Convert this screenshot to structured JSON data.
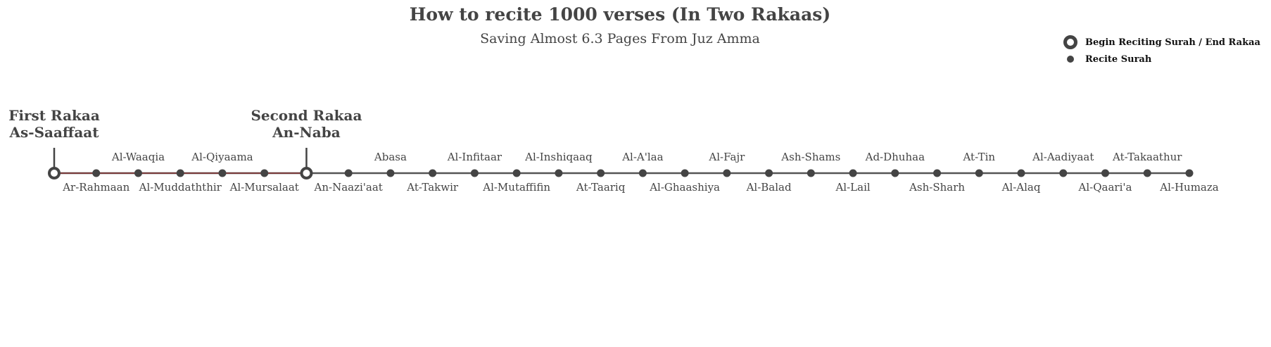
{
  "chart_data": {
    "type": "timeline",
    "title": "How to recite 1000 verses (In Two Rakaas)",
    "subtitle": "Saving Almost 6.3 Pages From Juz Amma",
    "colors": {
      "line": "#555555",
      "highlight": "#7a3b3b",
      "marker": "#444444",
      "text": "#444444"
    },
    "legend": {
      "placement": "top-right",
      "items": [
        {
          "marker": "ring",
          "label": "Begin Reciting Surah / End Rakaa"
        },
        {
          "marker": "dot",
          "label": "Recite Surah"
        }
      ]
    },
    "rakaas": [
      {
        "label": "First Rakaa",
        "surah": "As-Saaffaat",
        "index": 0
      },
      {
        "label": "Second Rakaa",
        "surah": "An-Naba",
        "index": 6
      }
    ],
    "highlight_range": [
      0,
      6
    ],
    "points": [
      {
        "name": "",
        "marker": "ring",
        "label_pos": "none"
      },
      {
        "name": "Ar-Rahmaan",
        "marker": "dot",
        "label_pos": "below"
      },
      {
        "name": "Al-Waaqia",
        "marker": "dot",
        "label_pos": "above"
      },
      {
        "name": "Al-Muddaththir",
        "marker": "dot",
        "label_pos": "below"
      },
      {
        "name": "Al-Qiyaama",
        "marker": "dot",
        "label_pos": "above"
      },
      {
        "name": "Al-Mursalaat",
        "marker": "dot",
        "label_pos": "below"
      },
      {
        "name": "",
        "marker": "ring",
        "label_pos": "none"
      },
      {
        "name": "An-Naazi'aat",
        "marker": "dot",
        "label_pos": "below"
      },
      {
        "name": "Abasa",
        "marker": "dot",
        "label_pos": "above"
      },
      {
        "name": "At-Takwir",
        "marker": "dot",
        "label_pos": "below"
      },
      {
        "name": "Al-Infitaar",
        "marker": "dot",
        "label_pos": "above"
      },
      {
        "name": "Al-Mutaffifin",
        "marker": "dot",
        "label_pos": "below"
      },
      {
        "name": "Al-Inshiqaaq",
        "marker": "dot",
        "label_pos": "above"
      },
      {
        "name": "At-Taariq",
        "marker": "dot",
        "label_pos": "below"
      },
      {
        "name": "Al-A'laa",
        "marker": "dot",
        "label_pos": "above"
      },
      {
        "name": "Al-Ghaashiya",
        "marker": "dot",
        "label_pos": "below"
      },
      {
        "name": "Al-Fajr",
        "marker": "dot",
        "label_pos": "above"
      },
      {
        "name": "Al-Balad",
        "marker": "dot",
        "label_pos": "below"
      },
      {
        "name": "Ash-Shams",
        "marker": "dot",
        "label_pos": "above"
      },
      {
        "name": "Al-Lail",
        "marker": "dot",
        "label_pos": "below"
      },
      {
        "name": "Ad-Dhuhaa",
        "marker": "dot",
        "label_pos": "above"
      },
      {
        "name": "Ash-Sharh",
        "marker": "dot",
        "label_pos": "below"
      },
      {
        "name": "At-Tin",
        "marker": "dot",
        "label_pos": "above"
      },
      {
        "name": "Al-Alaq",
        "marker": "dot",
        "label_pos": "below"
      },
      {
        "name": "Al-Aadiyaat",
        "marker": "dot",
        "label_pos": "above"
      },
      {
        "name": "Al-Qaari'a",
        "marker": "dot",
        "label_pos": "below"
      },
      {
        "name": "At-Takaathur",
        "marker": "dot",
        "label_pos": "above"
      },
      {
        "name": "Al-Humaza",
        "marker": "dot",
        "label_pos": "below"
      }
    ]
  }
}
